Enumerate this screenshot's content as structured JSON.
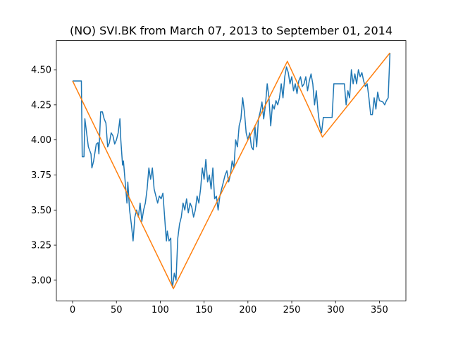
{
  "chart_data": {
    "type": "line",
    "title": "(NO) SVI.BK from March 07, 2013 to September 01, 2014",
    "xlim": [
      -18.5,
      380.2
    ],
    "ylim": [
      2.853,
      4.708
    ],
    "xticks": [
      0,
      50,
      100,
      150,
      200,
      250,
      300,
      350
    ],
    "yticks": [
      {
        "value": 3,
        "label": "3.00"
      },
      3.25,
      {
        "value": 3.5,
        "label": "3.50"
      },
      3.75,
      {
        "value": 4,
        "label": "4.00"
      },
      4.25,
      {
        "value": 4.5,
        "label": "4.50"
      }
    ],
    "grid": false,
    "series": [
      {
        "color": "#1f77b4",
        "x": [
          0,
          10,
          11,
          13,
          14,
          16,
          18,
          21,
          22,
          24,
          27,
          29,
          30,
          32,
          34,
          36,
          38,
          40,
          42,
          44,
          46,
          48,
          50,
          52,
          54,
          55,
          57,
          58,
          60,
          62,
          63,
          65,
          67,
          69,
          71,
          73,
          75,
          77,
          79,
          81,
          83,
          85,
          87,
          89,
          91,
          93,
          95,
          97,
          99,
          101,
          103,
          105,
          106,
          107,
          108,
          110,
          112,
          113,
          114,
          116,
          118,
          120,
          122,
          124,
          126,
          128,
          130,
          132,
          134,
          136,
          138,
          140,
          142,
          144,
          146,
          148,
          150,
          152,
          154,
          156,
          158,
          160,
          162,
          164,
          166,
          168,
          170,
          172,
          174,
          176,
          178,
          180,
          182,
          184,
          186,
          188,
          190,
          192,
          194,
          196,
          198,
          200,
          202,
          204,
          206,
          208,
          210,
          212,
          214,
          216,
          218,
          220,
          222,
          224,
          226,
          228,
          230,
          232,
          234,
          236,
          238,
          240,
          242,
          244,
          246,
          248,
          250,
          252,
          254,
          256,
          258,
          260,
          262,
          264,
          266,
          268,
          270,
          272,
          274,
          276,
          278,
          280,
          282,
          284,
          286,
          290,
          296,
          298,
          306,
          310,
          312,
          314,
          316,
          318,
          320,
          322,
          324,
          326,
          328,
          330,
          332,
          334,
          336,
          338,
          340,
          342,
          344,
          346,
          348,
          350,
          354,
          356,
          358,
          360,
          362
        ],
        "values": [
          4.42,
          4.42,
          3.88,
          3.88,
          4.15,
          4.05,
          3.95,
          3.9,
          3.8,
          3.85,
          3.97,
          3.98,
          3.9,
          4.2,
          4.2,
          4.15,
          4.12,
          3.95,
          3.98,
          4.05,
          4.03,
          3.97,
          4.0,
          4.05,
          4.15,
          4.0,
          3.82,
          3.85,
          3.7,
          3.55,
          3.7,
          3.5,
          3.4,
          3.28,
          3.45,
          3.5,
          3.45,
          3.55,
          3.42,
          3.5,
          3.55,
          3.65,
          3.8,
          3.72,
          3.8,
          3.65,
          3.6,
          3.55,
          3.6,
          3.58,
          3.62,
          3.45,
          3.36,
          3.28,
          3.35,
          3.28,
          3.3,
          3.0,
          2.95,
          3.05,
          3.0,
          3.3,
          3.4,
          3.45,
          3.55,
          3.5,
          3.58,
          3.48,
          3.55,
          3.52,
          3.45,
          3.5,
          3.6,
          3.55,
          3.65,
          3.8,
          3.72,
          3.86,
          3.7,
          3.75,
          3.65,
          3.8,
          3.58,
          3.6,
          3.5,
          3.6,
          3.65,
          3.7,
          3.75,
          3.78,
          3.7,
          3.75,
          3.85,
          3.8,
          4.0,
          3.95,
          4.1,
          4.15,
          4.3,
          4.2,
          4.05,
          4.0,
          4.05,
          3.95,
          3.93,
          4.1,
          3.95,
          4.15,
          4.2,
          4.27,
          4.15,
          4.25,
          4.4,
          4.3,
          4.1,
          4.25,
          4.22,
          4.28,
          4.25,
          4.3,
          4.4,
          4.3,
          4.45,
          4.52,
          4.48,
          4.4,
          4.45,
          4.35,
          4.4,
          4.33,
          4.42,
          4.45,
          4.38,
          4.4,
          4.45,
          4.35,
          4.42,
          4.47,
          4.4,
          4.25,
          4.35,
          4.2,
          4.1,
          4.05,
          4.16,
          4.16,
          4.16,
          4.4,
          4.4,
          4.4,
          4.25,
          4.35,
          4.3,
          4.5,
          4.4,
          4.47,
          4.4,
          4.5,
          4.45,
          4.48,
          4.42,
          4.38,
          4.4,
          4.3,
          4.18,
          4.18,
          4.3,
          4.22,
          4.34,
          4.28,
          4.27,
          4.25,
          4.28,
          4.3,
          4.62
        ]
      },
      {
        "color": "#ff7f0e",
        "x": [
          0,
          115,
          245,
          285,
          362
        ],
        "values": [
          4.42,
          2.94,
          4.56,
          4.02,
          4.62
        ]
      }
    ]
  }
}
